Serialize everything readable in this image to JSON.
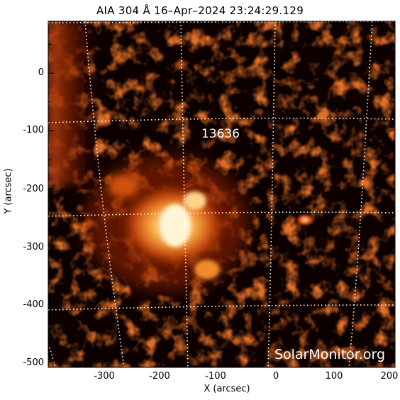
{
  "title": "AIA 304 Å 16–Apr–2024 23:24:29.129",
  "xlabel": "X (arcsec)",
  "ylabel": "Y (arcsec)",
  "region_label": "13636",
  "watermark": "SolarMonitor.org",
  "colors": {
    "background": "#ffffff",
    "sky": "#0d0100",
    "plasma_dim": "#5a1000",
    "plasma_mid": "#c23a06",
    "plasma_bright": "#ffe6b0",
    "grid": "#ffffff"
  },
  "axes": {
    "x_ticks": [
      "-300",
      "-200",
      "-100",
      "0",
      "100",
      "200"
    ],
    "y_ticks": [
      "0",
      "-100",
      "-200",
      "-300",
      "-400",
      "-500"
    ],
    "x_range": [
      -392,
      200
    ],
    "y_range": [
      -510,
      90
    ]
  }
}
